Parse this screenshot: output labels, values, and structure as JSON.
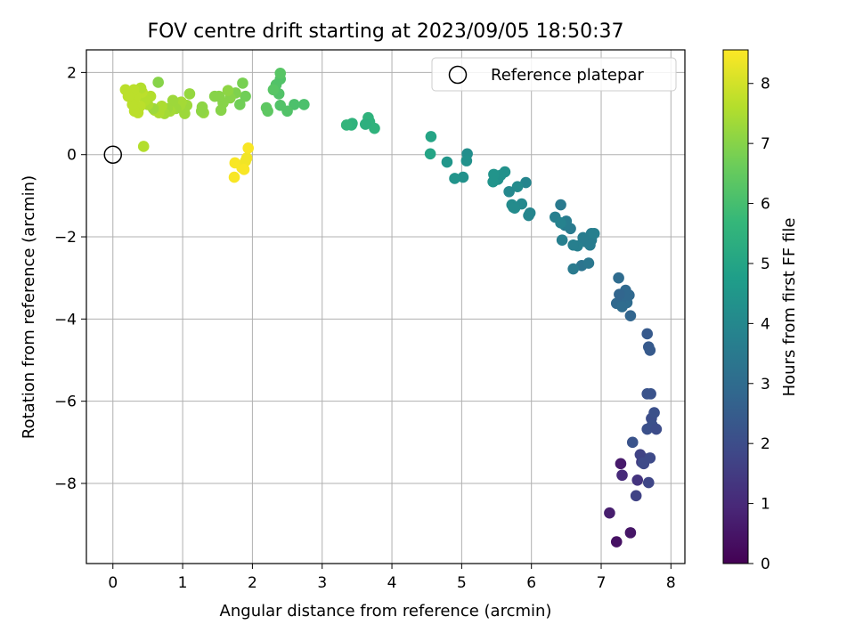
{
  "chart_data": {
    "type": "scatter",
    "title": "FOV centre drift starting at 2023/09/05 18:50:37",
    "xlabel": "Angular distance from reference (arcmin)",
    "ylabel": "Rotation from reference (arcmin)",
    "xlim": [
      -0.38,
      8.2
    ],
    "ylim": [
      -9.95,
      2.55
    ],
    "xticks": [
      0,
      1,
      2,
      3,
      4,
      5,
      6,
      7,
      8
    ],
    "yticks": [
      -8,
      -6,
      -4,
      -2,
      0,
      2
    ],
    "grid": true,
    "legend": {
      "position": "top-right",
      "label": "Reference platepar"
    },
    "reference_point": {
      "x": 0,
      "y": 0
    },
    "colorbar": {
      "label": "Hours from first FF file",
      "colormap": "viridis",
      "range": [
        0,
        8.56
      ],
      "ticks": [
        0,
        1,
        2,
        3,
        4,
        5,
        6,
        7,
        8
      ]
    },
    "series": [
      {
        "x": [
          7.22,
          7.28,
          7.42,
          7.12,
          7.3,
          7.52,
          7.58,
          7.62,
          7.68,
          7.5,
          7.56,
          7.61,
          7.6,
          7.7,
          7.66,
          7.72,
          7.76,
          7.73,
          7.79,
          7.71,
          7.68,
          7.66,
          7.7,
          7.66,
          7.45,
          7.42,
          7.33,
          7.37,
          7.25,
          7.4,
          7.28,
          7.35,
          7.22,
          7.26,
          7.3,
          6.72,
          6.82,
          6.6,
          6.78,
          6.86,
          6.42,
          6.5,
          6.56,
          6.48,
          6.86,
          6.9,
          6.66,
          6.84,
          6.74,
          6.44,
          6.34,
          6.42,
          6.6,
          5.98,
          5.96,
          5.92,
          5.86,
          5.8,
          5.74,
          5.72,
          5.68,
          5.76,
          5.62,
          5.56,
          5.52,
          5.46,
          5.45,
          5.08,
          5.07,
          5.02,
          4.9,
          4.79,
          4.56,
          4.55,
          3.75,
          3.68,
          3.66,
          3.62,
          3.43,
          3.42,
          3.35,
          2.74,
          2.6,
          2.5,
          2.4,
          2.38,
          2.4,
          2.34,
          2.3,
          2.22,
          2.2,
          2.4,
          1.9,
          1.86,
          1.82,
          1.76,
          1.68,
          1.65,
          1.58,
          1.55,
          1.52,
          1.46,
          1.3,
          1.27,
          1.28,
          1.1,
          1.06,
          1.03,
          1.02,
          0.98,
          0.96,
          0.9,
          0.86,
          0.82,
          0.78,
          0.74,
          0.7,
          0.66,
          0.6,
          0.65,
          0.58,
          0.54,
          0.5,
          0.46,
          0.42,
          0.4,
          0.39,
          0.36,
          0.33,
          0.31,
          0.28,
          0.3,
          0.22,
          0.18,
          0.44,
          1.92,
          1.94,
          1.85,
          1.75,
          1.9,
          1.88,
          1.74
        ],
        "y": [
          -9.42,
          -7.52,
          -9.2,
          -8.72,
          -7.8,
          -7.92,
          -7.48,
          -7.4,
          -7.98,
          -8.3,
          -7.3,
          -7.52,
          -7.5,
          -7.38,
          -6.68,
          -6.42,
          -6.28,
          -6.58,
          -6.68,
          -5.82,
          -4.68,
          -4.36,
          -4.76,
          -5.82,
          -7.0,
          -3.92,
          -3.4,
          -3.6,
          -3.0,
          -3.42,
          -3.62,
          -3.3,
          -3.62,
          -3.4,
          -3.7,
          -2.7,
          -2.64,
          -2.78,
          -2.12,
          -1.92,
          -1.22,
          -1.62,
          -1.8,
          -1.72,
          -2.08,
          -1.92,
          -2.22,
          -2.2,
          -2.02,
          -2.08,
          -1.52,
          -1.66,
          -2.2,
          -1.42,
          -1.48,
          -0.68,
          -1.2,
          -0.78,
          -1.28,
          -1.22,
          -0.9,
          -1.3,
          -0.42,
          -0.5,
          -0.6,
          -0.48,
          -0.66,
          0.02,
          -0.15,
          -0.55,
          -0.58,
          -0.18,
          0.44,
          0.02,
          0.64,
          0.8,
          0.9,
          0.74,
          0.76,
          0.72,
          0.72,
          1.22,
          1.22,
          1.06,
          1.2,
          1.48,
          1.84,
          1.7,
          1.58,
          1.06,
          1.14,
          1.98,
          1.42,
          1.74,
          1.22,
          1.5,
          1.38,
          1.56,
          1.26,
          1.08,
          1.42,
          1.42,
          1.02,
          1.06,
          1.16,
          1.48,
          1.2,
          1.0,
          1.08,
          1.28,
          1.2,
          1.12,
          1.32,
          1.06,
          1.12,
          1.0,
          1.18,
          1.02,
          1.08,
          1.76,
          1.12,
          1.42,
          1.22,
          1.32,
          1.52,
          1.62,
          1.18,
          1.02,
          1.42,
          1.06,
          1.22,
          1.58,
          1.42,
          1.58,
          0.2,
          -0.08,
          0.16,
          -0.32,
          -0.2,
          -0.16,
          -0.36,
          -0.55
        ],
        "hours": [
          0.4,
          0.6,
          0.5,
          0.7,
          1.0,
          1.3,
          1.5,
          1.6,
          1.8,
          1.7,
          1.7,
          1.8,
          1.9,
          1.9,
          2.1,
          2.0,
          2.1,
          2.1,
          2.0,
          2.2,
          2.4,
          2.4,
          2.4,
          2.2,
          2.2,
          2.8,
          2.9,
          3.0,
          3.0,
          2.9,
          2.9,
          2.9,
          2.9,
          2.8,
          3.0,
          3.3,
          3.4,
          3.5,
          3.6,
          3.6,
          3.5,
          3.6,
          3.5,
          3.6,
          3.6,
          3.7,
          3.7,
          3.6,
          3.6,
          3.7,
          3.7,
          3.8,
          3.7,
          3.9,
          3.9,
          3.9,
          4.0,
          4.1,
          4.1,
          4.1,
          4.0,
          4.1,
          4.3,
          4.3,
          4.3,
          4.4,
          4.4,
          4.2,
          4.3,
          4.3,
          4.4,
          4.5,
          5.0,
          5.0,
          5.5,
          5.5,
          5.5,
          5.4,
          5.5,
          5.5,
          5.6,
          6.1,
          6.1,
          6.2,
          6.2,
          6.2,
          6.2,
          6.2,
          6.3,
          6.4,
          6.4,
          6.3,
          6.7,
          6.8,
          6.7,
          6.9,
          7.0,
          7.1,
          7.0,
          7.0,
          7.0,
          7.0,
          7.2,
          7.1,
          7.1,
          7.2,
          7.3,
          7.3,
          7.3,
          7.4,
          7.4,
          7.3,
          7.3,
          7.4,
          7.3,
          7.4,
          7.5,
          7.5,
          7.5,
          7.0,
          7.3,
          7.6,
          7.5,
          7.6,
          7.7,
          7.6,
          7.7,
          7.7,
          7.7,
          7.7,
          7.7,
          7.7,
          7.7,
          7.7,
          7.6,
          8.4,
          8.5,
          8.5,
          8.5,
          8.4,
          8.5,
          8.5
        ]
      }
    ]
  }
}
